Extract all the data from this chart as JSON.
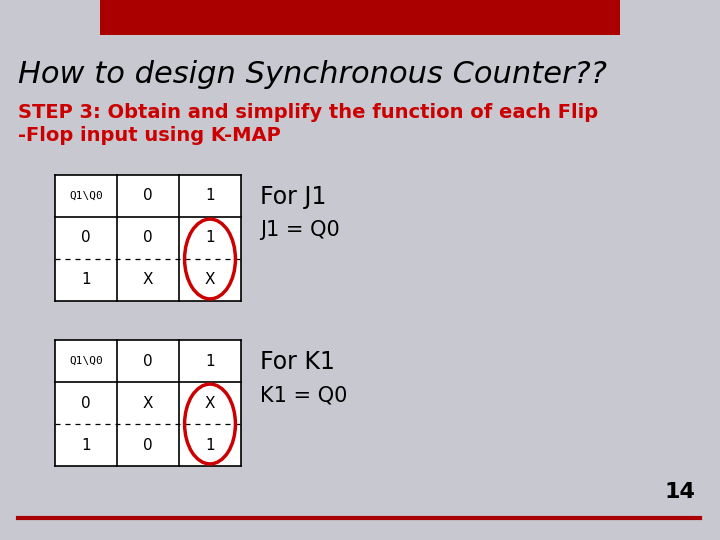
{
  "title": "How to design Synchronous Counter??",
  "subtitle_line1": "STEP 3: Obtain and simplify the function of each Flip",
  "subtitle_line2": "-Flop input using K-MAP",
  "title_color": "#000000",
  "subtitle_color": "#cc0000",
  "background_color": "#c8c8d0",
  "header_bar_color": "#aa0000",
  "slide_number": "14",
  "table1_header": [
    "Q1\\Q0",
    "0",
    "1"
  ],
  "table1_row0": [
    "0",
    "0",
    "1"
  ],
  "table1_row1": [
    "1",
    "X",
    "X"
  ],
  "table1_label": "For J1",
  "table1_eq": "J1 = Q0",
  "table2_header": [
    "Q1\\Q0",
    "0",
    "1"
  ],
  "table2_row0": [
    "0",
    "X",
    "X"
  ],
  "table2_row1": [
    "1",
    "0",
    "1"
  ],
  "table2_label": "For K1",
  "table2_eq": "K1 = Q0"
}
